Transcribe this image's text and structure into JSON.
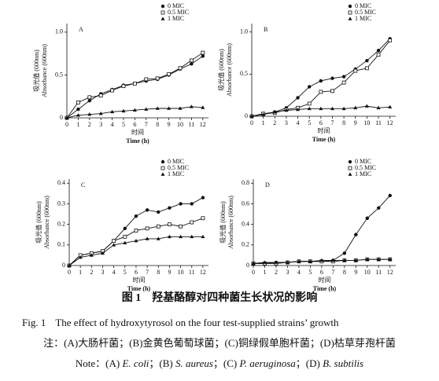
{
  "caption": {
    "figure_cn": "图 1",
    "title_cn": "羟基酪醇对四种菌生长状况的影响",
    "figure_en": "Fig. 1",
    "title_en": "The effect of hydroxytyrosol on the four test-supplied strains’ growth",
    "note_cn": "注：(A)大肠杆菌；(B)金黄色葡萄球菌；(C)铜绿假单胞杆菌；(D)枯草芽孢杆菌",
    "note_en": [
      {
        "text": "Note：(A) ",
        "italic": false
      },
      {
        "text": "E. coli",
        "italic": true
      },
      {
        "text": "；(B) ",
        "italic": false
      },
      {
        "text": "S. aureus",
        "italic": true
      },
      {
        "text": "；(C) ",
        "italic": false
      },
      {
        "text": "P. aeruginosa",
        "italic": true
      },
      {
        "text": "；(D) ",
        "italic": false
      },
      {
        "text": "B. subtilis",
        "italic": true
      }
    ]
  },
  "chart_data": [
    {
      "type": "line",
      "label": "A",
      "xlabel_cn": "时间",
      "xlabel": "Time (h)",
      "ylabel_cn": "吸光值 (600nm)",
      "ylabel": "Absorbance (600nm)",
      "x": [
        0,
        1,
        2,
        3,
        4,
        5,
        6,
        7,
        8,
        9,
        10,
        11,
        12
      ],
      "xlim": [
        0,
        12.5
      ],
      "xticks": [
        0,
        1,
        2,
        3,
        4,
        5,
        6,
        7,
        8,
        9,
        10,
        11,
        12
      ],
      "ylim": [
        0,
        1.1
      ],
      "yticks": [
        0,
        0.5,
        {
          "value": 1,
          "label": "1.0"
        }
      ],
      "series": [
        {
          "name": "0 MIC",
          "color": "#111",
          "marker": "circle",
          "values": [
            0,
            0.1,
            0.2,
            0.28,
            0.33,
            0.38,
            0.4,
            0.43,
            0.45,
            0.5,
            0.57,
            0.63,
            0.72
          ]
        },
        {
          "name": "0.5 MIC",
          "color": "#111",
          "marker": "square",
          "values": [
            0,
            0.18,
            0.24,
            0.26,
            0.32,
            0.37,
            0.4,
            0.45,
            0.46,
            0.51,
            0.58,
            0.67,
            0.76
          ]
        },
        {
          "name": "1 MIC",
          "color": "#111",
          "marker": "triangle",
          "values": [
            0,
            0.03,
            0.04,
            0.05,
            0.07,
            0.08,
            0.09,
            0.1,
            0.11,
            0.11,
            0.11,
            0.13,
            0.12
          ]
        }
      ]
    },
    {
      "type": "line",
      "label": "B",
      "xlabel_cn": "时间",
      "xlabel": "Time (h)",
      "ylabel_cn": "吸光值 (600nm)",
      "ylabel": "Absorbance (600nm)",
      "x": [
        0,
        1,
        2,
        3,
        4,
        5,
        6,
        7,
        8,
        9,
        10,
        11,
        12
      ],
      "xlim": [
        0,
        12.5
      ],
      "xticks": [
        0,
        1,
        2,
        3,
        4,
        5,
        6,
        7,
        8,
        9,
        10,
        11,
        12
      ],
      "ylim": [
        0,
        1.1
      ],
      "yticks": [
        0,
        0.5,
        {
          "value": 1,
          "label": "1.0"
        }
      ],
      "series": [
        {
          "name": "0 MIC",
          "color": "#111",
          "marker": "circle",
          "values": [
            0,
            0.03,
            0.05,
            0.1,
            0.22,
            0.35,
            0.42,
            0.45,
            0.47,
            0.56,
            0.66,
            0.78,
            0.92
          ]
        },
        {
          "name": "0.5 MIC",
          "color": "#111",
          "marker": "square",
          "values": [
            0,
            0.03,
            0.04,
            0.08,
            0.1,
            0.15,
            0.29,
            0.3,
            0.4,
            0.54,
            0.57,
            0.73,
            0.9
          ]
        },
        {
          "name": "1 MIC",
          "color": "#111",
          "marker": "triangle",
          "values": [
            0,
            0.02,
            0.05,
            0.07,
            0.08,
            0.09,
            0.09,
            0.09,
            0.09,
            0.1,
            0.12,
            0.1,
            0.11
          ]
        }
      ]
    },
    {
      "type": "line",
      "label": "C",
      "xlabel_cn": "时间",
      "xlabel": "Time (h)",
      "ylabel_cn": "吸光值 (600nm)",
      "ylabel": "Absorbance (600nm)",
      "x": [
        0,
        1,
        2,
        3,
        4,
        5,
        6,
        7,
        8,
        9,
        10,
        11,
        12
      ],
      "xlim": [
        0,
        12.5
      ],
      "xticks": [
        0,
        1,
        2,
        3,
        4,
        5,
        6,
        7,
        8,
        9,
        10,
        11,
        12
      ],
      "ylim": [
        0,
        0.42
      ],
      "yticks": [
        0,
        0.1,
        0.2,
        0.3,
        0.4
      ],
      "series": [
        {
          "name": "0 MIC",
          "color": "#111",
          "marker": "circle",
          "values": [
            0,
            0.05,
            0.06,
            0.07,
            0.12,
            0.18,
            0.24,
            0.27,
            0.26,
            0.28,
            0.3,
            0.3,
            0.33
          ]
        },
        {
          "name": "0.5 MIC",
          "color": "#111",
          "marker": "square",
          "values": [
            0,
            0.05,
            0.06,
            0.07,
            0.12,
            0.14,
            0.17,
            0.18,
            0.19,
            0.2,
            0.19,
            0.21,
            0.23
          ]
        },
        {
          "name": "1 MIC",
          "color": "#111",
          "marker": "triangle",
          "values": [
            0,
            0.04,
            0.05,
            0.06,
            0.1,
            0.11,
            0.12,
            0.13,
            0.13,
            0.14,
            0.14,
            0.14,
            0.14
          ]
        }
      ]
    },
    {
      "type": "line",
      "label": "D",
      "xlabel_cn": "时间",
      "xlabel": "Time (h)",
      "ylabel_cn": "吸光值 (600nm)",
      "ylabel": "Absorbance (600nm)",
      "x": [
        0,
        1,
        2,
        3,
        4,
        5,
        6,
        7,
        8,
        9,
        10,
        11,
        12
      ],
      "xlim": [
        0,
        12.5
      ],
      "xticks": [
        0,
        1,
        2,
        3,
        4,
        5,
        6,
        7,
        8,
        9,
        10,
        11,
        12
      ],
      "ylim": [
        0,
        0.84
      ],
      "yticks": [
        0,
        0.2,
        0.4,
        0.6,
        0.8
      ],
      "series": [
        {
          "name": "0 MIC",
          "color": "#111",
          "marker": "circle",
          "values": [
            0.02,
            0.02,
            0.03,
            0.03,
            0.04,
            0.04,
            0.04,
            0.05,
            0.12,
            0.3,
            0.46,
            0.56,
            0.68
          ]
        },
        {
          "name": "0.5 MIC",
          "color": "#111",
          "marker": "square",
          "values": [
            0.02,
            0.02,
            0.02,
            0.03,
            0.04,
            0.04,
            0.04,
            0.04,
            0.05,
            0.05,
            0.06,
            0.06,
            0.06
          ]
        },
        {
          "name": "1 MIC",
          "color": "#111",
          "marker": "triangle",
          "values": [
            0.02,
            0.03,
            0.03,
            0.03,
            0.04,
            0.04,
            0.05,
            0.05,
            0.05,
            0.05,
            0.06,
            0.06,
            0.06
          ]
        }
      ]
    }
  ]
}
